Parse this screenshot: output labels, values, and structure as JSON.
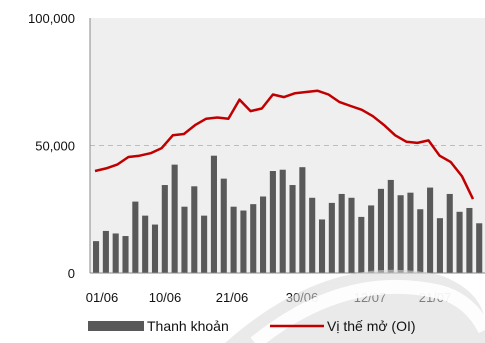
{
  "chart_data": {
    "type": "bar+line",
    "x_ticks": [
      "01/06",
      "10/06",
      "21/06",
      "30/06",
      "12/07",
      "21/07"
    ],
    "y_ticks": [
      "0",
      "50,000",
      "100,000"
    ],
    "ylim": [
      0,
      100000
    ],
    "grid": "dashed horizontal at 50,000",
    "legend": "bottom",
    "series": [
      {
        "name": "Thanh khoản",
        "type": "bar",
        "color": "#595959",
        "values": [
          12500,
          16500,
          15500,
          14500,
          28000,
          22500,
          19000,
          34500,
          42500,
          26000,
          34000,
          22500,
          46000,
          37000,
          26000,
          24500,
          27000,
          30000,
          40000,
          40500,
          34500,
          41500,
          29500,
          21000,
          27500,
          31000,
          29500,
          22000,
          26500,
          33000,
          36500,
          30500,
          31500,
          25000,
          33500,
          21500,
          31000,
          24000,
          25500,
          19500
        ]
      },
      {
        "name": "Vị thế mở (OI)",
        "type": "line",
        "color": "#c00000",
        "values": [
          40000,
          41000,
          42500,
          45500,
          46000,
          47000,
          49000,
          54000,
          54500,
          58000,
          60500,
          61000,
          60500,
          68000,
          63500,
          64500,
          70000,
          69000,
          70500,
          71000,
          71500,
          70000,
          67000,
          65500,
          64000,
          61500,
          58000,
          54000,
          51500,
          51000,
          52000,
          46000,
          43500,
          38000,
          29000
        ]
      }
    ]
  }
}
